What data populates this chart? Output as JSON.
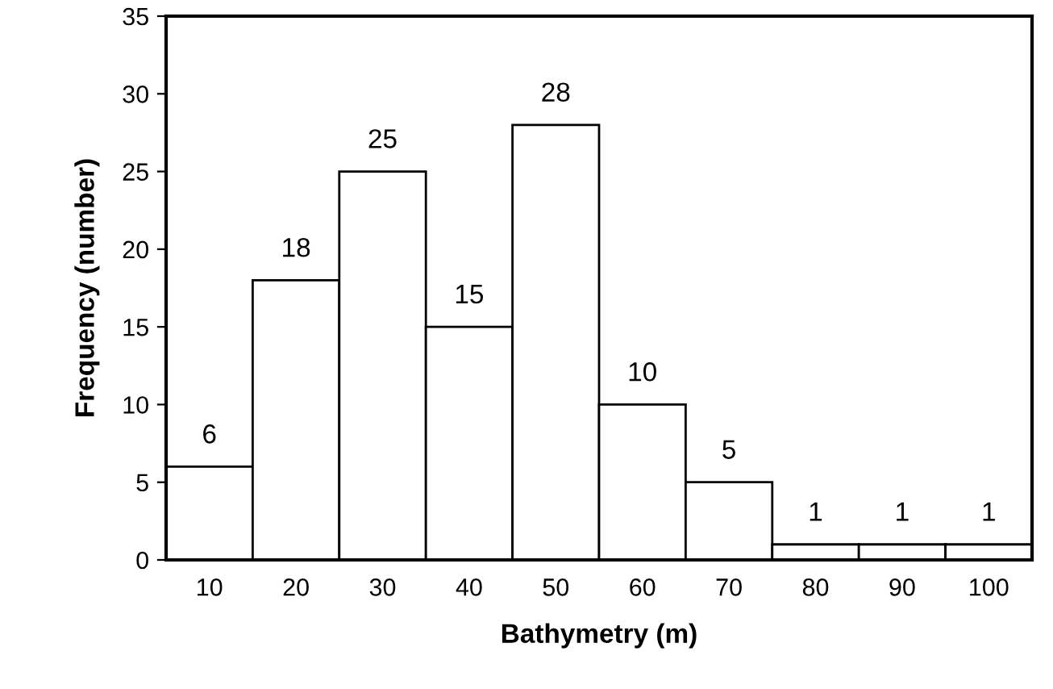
{
  "chart_data": {
    "type": "bar",
    "xlabel": "Bathymetry (m)",
    "ylabel": "Frequency (number)",
    "categories": [
      "10",
      "20",
      "30",
      "40",
      "50",
      "60",
      "70",
      "80",
      "90",
      "100"
    ],
    "values": [
      6,
      18,
      25,
      15,
      28,
      10,
      5,
      1,
      1,
      1
    ],
    "color": "#ffffff",
    "ylim": [
      0,
      35
    ],
    "yticks": [
      0,
      5,
      10,
      15,
      20,
      25,
      30,
      35
    ],
    "data_labels": true,
    "grid": false,
    "legend": false
  }
}
